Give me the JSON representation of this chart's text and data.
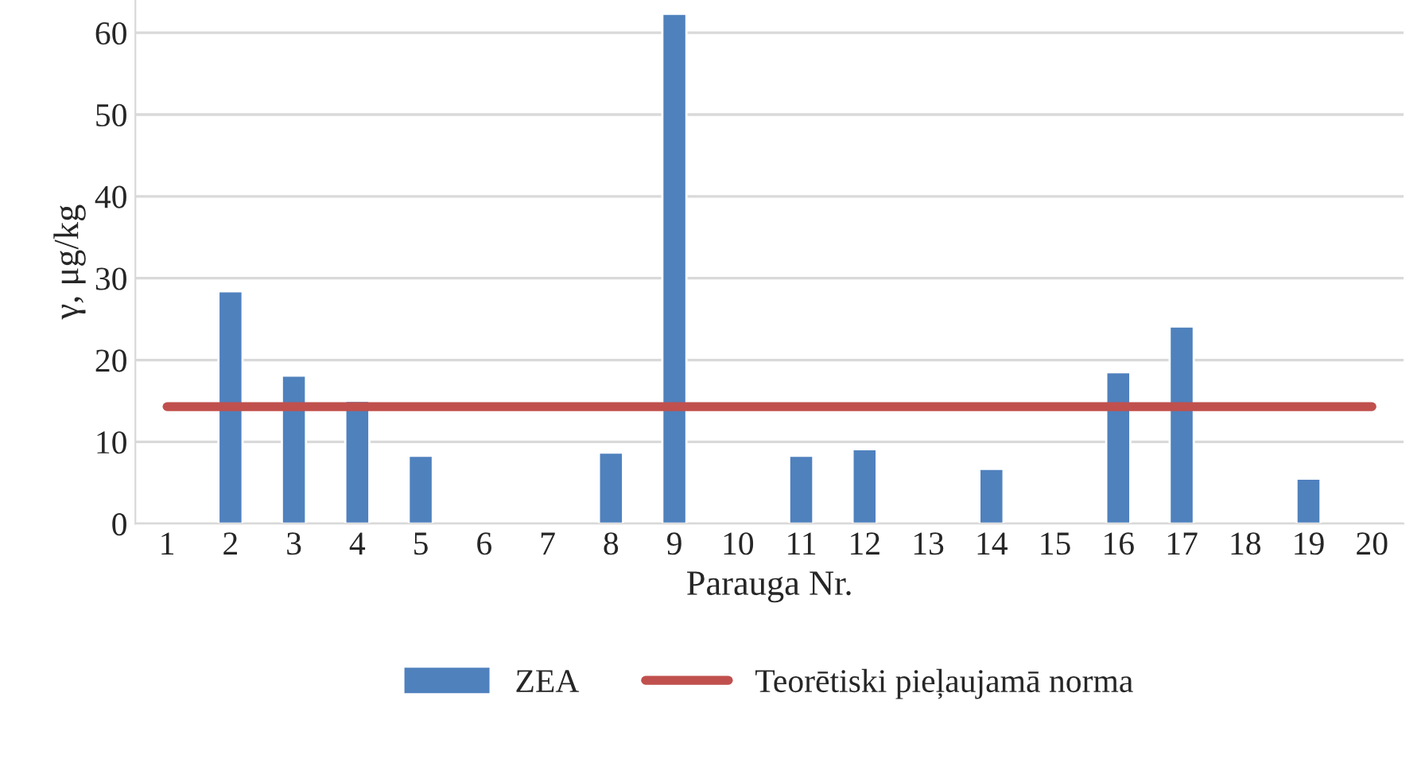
{
  "chart_data": {
    "type": "bar",
    "xlabel": "Parauga Nr.",
    "ylabel": "γ, μg/kg",
    "categories": [
      "1",
      "2",
      "3",
      "4",
      "5",
      "6",
      "7",
      "8",
      "9",
      "10",
      "11",
      "12",
      "13",
      "14",
      "15",
      "16",
      "17",
      "18",
      "19",
      "20"
    ],
    "series": [
      {
        "name": "ZEA",
        "color": "#4f81bd",
        "values": [
          null,
          28.4,
          18.1,
          15.0,
          8.3,
          null,
          null,
          8.7,
          62.3,
          null,
          8.3,
          9.1,
          null,
          6.7,
          null,
          18.5,
          24.1,
          null,
          5.5,
          null
        ]
      },
      {
        "name": "Teorētiski pieļaujamā norma",
        "type": "line",
        "color": "#c0504d",
        "values": [
          14.3,
          14.3,
          14.3,
          14.3,
          14.3,
          14.3,
          14.3,
          14.3,
          14.3,
          14.3,
          14.3,
          14.3,
          14.3,
          14.3,
          14.3,
          14.3,
          14.3,
          14.3,
          14.3,
          14.3
        ]
      }
    ],
    "ylim": [
      0,
      64
    ],
    "yticks": [
      0,
      10,
      20,
      30,
      40,
      50,
      60
    ],
    "grid": "y",
    "legend": "bottom"
  }
}
